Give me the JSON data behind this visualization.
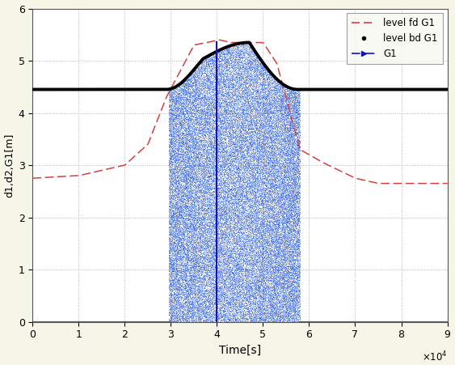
{
  "xlim": [
    0,
    90000
  ],
  "ylim": [
    0,
    6
  ],
  "xlabel": "Time[s]",
  "ylabel": "d1,d2,G1[m]",
  "xticks": [
    0,
    10000,
    20000,
    30000,
    40000,
    50000,
    60000,
    70000,
    80000,
    90000
  ],
  "xticklabels": [
    "0",
    "1",
    "2",
    "3",
    "4",
    "5",
    "6",
    "7",
    "8",
    "9"
  ],
  "yticks": [
    0,
    1,
    2,
    3,
    4,
    5,
    6
  ],
  "yticklabels": [
    "0",
    "1",
    "2",
    "3",
    "4",
    "5",
    "6"
  ],
  "bg_color": "#f5f5e8",
  "axes_color": "#ffffff",
  "grid_color": "#aaaaaa",
  "level_fd_color": "#d44040",
  "level_bd_color": "#000000",
  "G1_fill_color": "#2255dd",
  "G1_line_color": "#1111cc",
  "legend_labels": [
    "level fd G1",
    "level bd G1",
    "G1"
  ],
  "gate_open_start": 29500,
  "gate_open_end": 58000,
  "gate_vert_t": 40000,
  "level_bd_flat": 4.45,
  "level_bd_peak": 5.35,
  "level_bd_rise_start": 29000,
  "level_bd_rise_end": 37000,
  "level_bd_peak_t": 47000,
  "level_bd_fall_end": 57500,
  "level_fd_start": 2.75,
  "level_fd_mid1_t": 10000,
  "level_fd_mid1_v": 2.8,
  "level_fd_mid2_t": 20000,
  "level_fd_mid2_v": 3.0,
  "level_fd_rise_t": 29000,
  "level_fd_peak_t": 40500,
  "level_fd_peak_v": 5.4,
  "level_fd_settle_t": 50000,
  "level_fd_settle_v": 5.35,
  "level_fd_fall1_t": 58000,
  "level_fd_fall1_v": 3.1,
  "level_fd_end_v": 2.65
}
